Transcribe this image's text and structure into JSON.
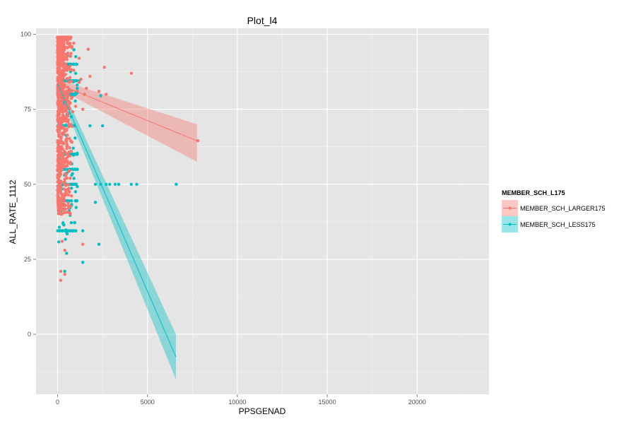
{
  "chart_data": {
    "type": "scatter",
    "title": "Plot_l4",
    "xlabel": "PPSGENAD",
    "ylabel": "ALL_RATE_1112",
    "xlim": [
      -1200,
      24000
    ],
    "ylim": [
      -20,
      102
    ],
    "x_ticks": [
      0,
      5000,
      10000,
      15000,
      20000
    ],
    "x_tick_labels": [
      "0",
      "5000",
      "10000",
      "15000",
      "20000"
    ],
    "y_ticks": [
      0,
      25,
      50,
      75,
      100
    ],
    "y_tick_labels": [
      "0",
      "25",
      "50",
      "75",
      "100"
    ],
    "grid": true,
    "legend": {
      "title": "MEMBER_SCH_L175",
      "position": "right",
      "entries": [
        "MEMBER_SCH_LARGER175",
        "MEMBER_SCH_LESS175"
      ]
    },
    "series": [
      {
        "name": "MEMBER_SCH_LARGER175",
        "color": "#F8766D",
        "points": [
          [
            4100,
            87
          ],
          [
            2700,
            80
          ],
          [
            2300,
            81
          ],
          [
            1800,
            86
          ],
          [
            1600,
            82
          ],
          [
            1500,
            80
          ],
          [
            1400,
            75
          ],
          [
            1300,
            85
          ],
          [
            1200,
            84
          ],
          [
            1100,
            81
          ],
          [
            1000,
            76
          ],
          [
            900,
            88
          ],
          [
            800,
            79
          ],
          [
            1400,
            30
          ],
          [
            700,
            40
          ],
          [
            600,
            42
          ],
          [
            400,
            20
          ],
          [
            400,
            28
          ],
          [
            250,
            31
          ],
          [
            180,
            21
          ],
          [
            170,
            18
          ],
          [
            500,
            47
          ],
          [
            700,
            52
          ],
          [
            800,
            64
          ],
          [
            7800,
            64.5
          ],
          [
            2600,
            89
          ],
          [
            1700,
            95
          ],
          [
            1200,
            92
          ],
          [
            900,
            97
          ],
          [
            600,
            99
          ]
        ],
        "fit": {
          "x": [
            0,
            7750
          ],
          "y": [
            83.5,
            64.5
          ],
          "ci_lower_end": 57.5,
          "ci_upper_end": 70,
          "ci_lower_start": 82,
          "ci_upper_start": 85
        }
      },
      {
        "name": "MEMBER_SCH_LESS175",
        "color": "#00BFC4",
        "points": [
          [
            6600,
            50
          ],
          [
            4400,
            50
          ],
          [
            4100,
            50
          ],
          [
            3400,
            50
          ],
          [
            3200,
            50
          ],
          [
            2900,
            50
          ],
          [
            2700,
            50
          ],
          [
            2400,
            50
          ],
          [
            2100,
            44
          ],
          [
            2100,
            50
          ],
          [
            2300,
            30
          ],
          [
            1400,
            24
          ],
          [
            1400,
            34.5
          ],
          [
            900,
            34.5
          ],
          [
            500,
            34
          ],
          [
            500,
            27
          ],
          [
            400,
            21
          ],
          [
            2500,
            69.5
          ],
          [
            1800,
            69.5
          ],
          [
            1500,
            80
          ],
          [
            1200,
            84.5
          ],
          [
            1100,
            60
          ],
          [
            1100,
            55
          ],
          [
            600,
            90
          ],
          [
            2400,
            79.5
          ]
        ],
        "fit": {
          "x": [
            0,
            6580
          ],
          "y": [
            83.5,
            -7.5
          ],
          "ci_lower_end": -15,
          "ci_upper_end": 0,
          "ci_lower_start": 82,
          "ci_upper_start": 85.5
        }
      }
    ]
  }
}
